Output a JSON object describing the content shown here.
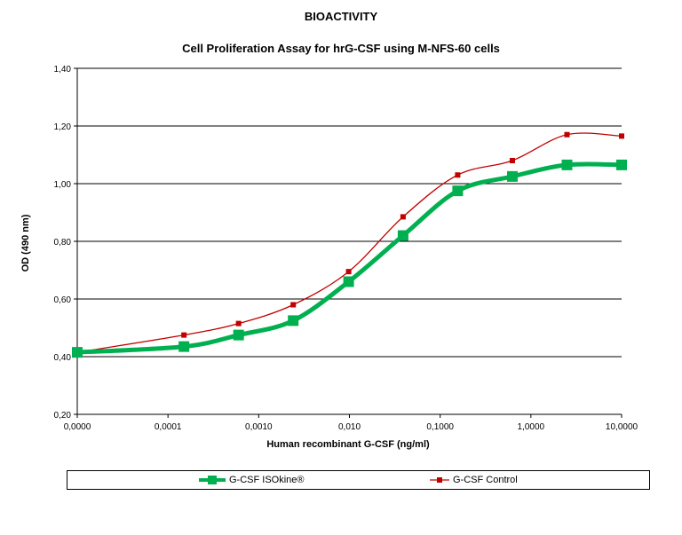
{
  "title": "BIOACTIVITY",
  "subtitle": "Cell Proliferation Assay for hrG-CSF using M-NFS-60 cells",
  "colors": {
    "isokine": "#00b050",
    "control": "#c00000",
    "grid": "#000000"
  },
  "chart_data": {
    "type": "line",
    "title": "Cell Proliferation Assay for hrG-CSF using M-NFS-60 cells",
    "xlabel": "Human recombinant G-CSF (ng/ml)",
    "ylabel": "OD (490 nm)",
    "x_scale": "log",
    "x_ticks": [
      "0,0000",
      "0,0001",
      "0,0010",
      "0,010",
      "0,1000",
      "1,0000",
      "10,0000"
    ],
    "y_ticks": [
      "0,20",
      "0,40",
      "0,60",
      "0,80",
      "1,00",
      "1,20",
      "1,40"
    ],
    "ylim": [
      0.2,
      1.4
    ],
    "grid": "horizontal",
    "legend_position": "bottom",
    "x": [
      1e-05,
      0.00015,
      0.0006,
      0.0024,
      0.0098,
      0.039,
      0.156,
      0.625,
      2.5,
      10
    ],
    "series": [
      {
        "name": "G-CSF ISOkine®",
        "color": "#00b050",
        "values": [
          0.415,
          0.435,
          0.475,
          0.525,
          0.66,
          0.82,
          0.975,
          1.025,
          1.065,
          1.065
        ]
      },
      {
        "name": "G-CSF Control",
        "color": "#c00000",
        "values": [
          0.415,
          0.475,
          0.515,
          0.58,
          0.695,
          0.885,
          1.03,
          1.08,
          1.17,
          1.165
        ]
      }
    ]
  }
}
